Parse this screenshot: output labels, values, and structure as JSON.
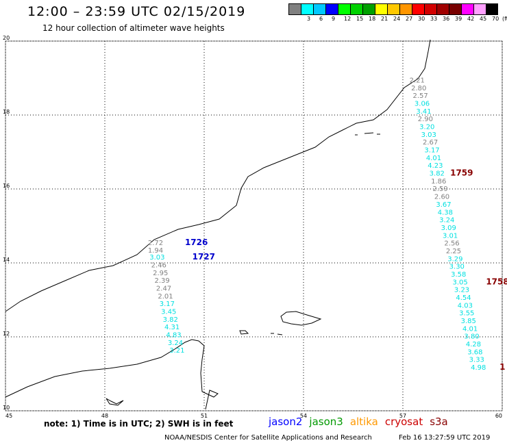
{
  "header": {
    "title": "12:00 – 23:59 UTC 02/15/2019",
    "subtitle": "12 hour collection of altimeter wave heights"
  },
  "legend": {
    "unit": "(ft)",
    "bins": [
      {
        "color": "#808080",
        "label": ""
      },
      {
        "color": "#00ffff",
        "label": "3"
      },
      {
        "color": "#00c8ff",
        "label": "6"
      },
      {
        "color": "#0000ff",
        "label": "9"
      },
      {
        "color": "#00ff00",
        "label": "12"
      },
      {
        "color": "#00d200",
        "label": "15"
      },
      {
        "color": "#00a000",
        "label": "18"
      },
      {
        "color": "#ffff00",
        "label": "21"
      },
      {
        "color": "#ffc800",
        "label": "24"
      },
      {
        "color": "#ff9600",
        "label": "27"
      },
      {
        "color": "#ff0000",
        "label": "30"
      },
      {
        "color": "#d20000",
        "label": "33"
      },
      {
        "color": "#a00000",
        "label": "36"
      },
      {
        "color": "#780000",
        "label": "39"
      },
      {
        "color": "#ff00ff",
        "label": "42"
      },
      {
        "color": "#ffa0ff",
        "label": "45"
      },
      {
        "color": "#000000",
        "label": "70"
      }
    ]
  },
  "map": {
    "lon_range": [
      45,
      60
    ],
    "lat_range": [
      10,
      20
    ],
    "lon_ticks": [
      "45",
      "48",
      "51",
      "54",
      "57",
      "60"
    ],
    "lat_ticks": [
      "10",
      "12",
      "14",
      "16",
      "18",
      "20"
    ]
  },
  "tracks": [
    {
      "id": "jason2-pass",
      "readings": [
        {
          "lon": 49.3,
          "lat": 14.48,
          "value": "2.72",
          "color": "#808080"
        },
        {
          "lon": 49.3,
          "lat": 14.28,
          "value": "1.94",
          "color": "#808080"
        },
        {
          "lon": 49.35,
          "lat": 14.09,
          "value": "3.03",
          "color": "#00e0e0"
        },
        {
          "lon": 49.4,
          "lat": 13.88,
          "value": "2.46",
          "color": "#808080"
        },
        {
          "lon": 49.45,
          "lat": 13.67,
          "value": "2.95",
          "color": "#808080"
        },
        {
          "lon": 49.5,
          "lat": 13.46,
          "value": "2.39",
          "color": "#808080"
        },
        {
          "lon": 49.55,
          "lat": 13.25,
          "value": "2.47",
          "color": "#808080"
        },
        {
          "lon": 49.6,
          "lat": 13.04,
          "value": "2.01",
          "color": "#808080"
        },
        {
          "lon": 49.65,
          "lat": 12.83,
          "value": "3.17",
          "color": "#00e0e0"
        },
        {
          "lon": 49.7,
          "lat": 12.62,
          "value": "3.45",
          "color": "#00e0e0"
        },
        {
          "lon": 49.75,
          "lat": 12.41,
          "value": "3.82",
          "color": "#00e0e0"
        },
        {
          "lon": 49.8,
          "lat": 12.2,
          "value": "4.31",
          "color": "#00e0e0"
        },
        {
          "lon": 49.85,
          "lat": 11.99,
          "value": "4.83",
          "color": "#00e0e0"
        },
        {
          "lon": 49.9,
          "lat": 11.78,
          "value": "3.24",
          "color": "#00e0e0"
        },
        {
          "lon": 49.95,
          "lat": 11.57,
          "value": "3.21",
          "color": "#00e0e0"
        }
      ],
      "times": [
        {
          "lon": 50.42,
          "lat": 14.48,
          "value": "1726",
          "color": "#0000cc"
        },
        {
          "lon": 50.64,
          "lat": 14.09,
          "value": "1727",
          "color": "#0000cc"
        }
      ]
    },
    {
      "id": "cryosat-pass",
      "readings": [
        {
          "lon": 57.2,
          "lat": 18.88,
          "value": "2.21",
          "color": "#808080"
        },
        {
          "lon": 57.25,
          "lat": 18.67,
          "value": "2.80",
          "color": "#808080"
        },
        {
          "lon": 57.3,
          "lat": 18.46,
          "value": "2.57",
          "color": "#808080"
        },
        {
          "lon": 57.35,
          "lat": 18.25,
          "value": "3.06",
          "color": "#00e0e0"
        },
        {
          "lon": 57.4,
          "lat": 18.04,
          "value": "3.41",
          "color": "#00e0e0"
        },
        {
          "lon": 57.45,
          "lat": 17.83,
          "value": "2.90",
          "color": "#808080"
        },
        {
          "lon": 57.5,
          "lat": 17.62,
          "value": "3.20",
          "color": "#00e0e0"
        },
        {
          "lon": 57.55,
          "lat": 17.41,
          "value": "3.03",
          "color": "#00e0e0"
        },
        {
          "lon": 57.6,
          "lat": 17.2,
          "value": "2.67",
          "color": "#808080"
        },
        {
          "lon": 57.65,
          "lat": 16.99,
          "value": "3.17",
          "color": "#00e0e0"
        },
        {
          "lon": 57.7,
          "lat": 16.78,
          "value": "4.01",
          "color": "#00e0e0"
        },
        {
          "lon": 57.75,
          "lat": 16.57,
          "value": "4.23",
          "color": "#00e0e0"
        },
        {
          "lon": 57.8,
          "lat": 16.36,
          "value": "3.82",
          "color": "#00e0e0"
        },
        {
          "lon": 57.85,
          "lat": 16.15,
          "value": "1.86",
          "color": "#808080"
        },
        {
          "lon": 57.9,
          "lat": 15.94,
          "value": "2.59",
          "color": "#808080"
        },
        {
          "lon": 57.95,
          "lat": 15.73,
          "value": "2.60",
          "color": "#808080"
        },
        {
          "lon": 58.0,
          "lat": 15.52,
          "value": "3.67",
          "color": "#00e0e0"
        },
        {
          "lon": 58.05,
          "lat": 15.31,
          "value": "4.38",
          "color": "#00e0e0"
        },
        {
          "lon": 58.1,
          "lat": 15.1,
          "value": "3.24",
          "color": "#00e0e0"
        },
        {
          "lon": 58.15,
          "lat": 14.89,
          "value": "3.09",
          "color": "#00e0e0"
        },
        {
          "lon": 58.2,
          "lat": 14.68,
          "value": "3.01",
          "color": "#00e0e0"
        },
        {
          "lon": 58.25,
          "lat": 14.47,
          "value": "2.56",
          "color": "#808080"
        },
        {
          "lon": 58.3,
          "lat": 14.26,
          "value": "2.25",
          "color": "#808080"
        },
        {
          "lon": 58.35,
          "lat": 14.05,
          "value": "3.29",
          "color": "#00e0e0"
        },
        {
          "lon": 58.4,
          "lat": 13.84,
          "value": "3.30",
          "color": "#00e0e0"
        },
        {
          "lon": 58.45,
          "lat": 13.63,
          "value": "3.58",
          "color": "#00e0e0"
        },
        {
          "lon": 58.5,
          "lat": 13.42,
          "value": "3.05",
          "color": "#00e0e0"
        },
        {
          "lon": 58.55,
          "lat": 13.21,
          "value": "3.23",
          "color": "#00e0e0"
        },
        {
          "lon": 58.6,
          "lat": 13.0,
          "value": "4.54",
          "color": "#00e0e0"
        },
        {
          "lon": 58.65,
          "lat": 12.79,
          "value": "4.03",
          "color": "#00e0e0"
        },
        {
          "lon": 58.7,
          "lat": 12.58,
          "value": "3.55",
          "color": "#00e0e0"
        },
        {
          "lon": 58.75,
          "lat": 12.37,
          "value": "3.85",
          "color": "#00e0e0"
        },
        {
          "lon": 58.8,
          "lat": 12.16,
          "value": "4.01",
          "color": "#00e0e0"
        },
        {
          "lon": 58.85,
          "lat": 11.95,
          "value": "3.80",
          "color": "#00e0e0"
        },
        {
          "lon": 58.9,
          "lat": 11.74,
          "value": "4.28",
          "color": "#00e0e0"
        },
        {
          "lon": 58.95,
          "lat": 11.53,
          "value": "3.68",
          "color": "#00e0e0"
        },
        {
          "lon": 59.0,
          "lat": 11.32,
          "value": "3.33",
          "color": "#00e0e0"
        },
        {
          "lon": 59.05,
          "lat": 11.11,
          "value": "4.98",
          "color": "#00e0e0"
        }
      ],
      "times": [
        {
          "lon": 58.43,
          "lat": 16.36,
          "value": "1759",
          "color": "#880000"
        },
        {
          "lon": 59.51,
          "lat": 13.42,
          "value": "1758",
          "color": "#880000"
        },
        {
          "lon": 59.92,
          "lat": 11.11,
          "value": "1",
          "color": "#880000"
        }
      ]
    }
  ],
  "footer": {
    "note": "note: 1) Time is in UTC; 2) SWH is in feet",
    "satellites": [
      {
        "name": "jason2",
        "color": "#0000ff"
      },
      {
        "name": "jason3",
        "color": "#009900"
      },
      {
        "name": "altika",
        "color": "#ff9900"
      },
      {
        "name": "cryosat",
        "color": "#cc0000"
      },
      {
        "name": "s3a",
        "color": "#880000"
      }
    ],
    "credit": "NOAA/NESDIS Center for Satellite Applications and Research",
    "timestamp": "Feb 16 13:27:59 UTC 2019"
  }
}
